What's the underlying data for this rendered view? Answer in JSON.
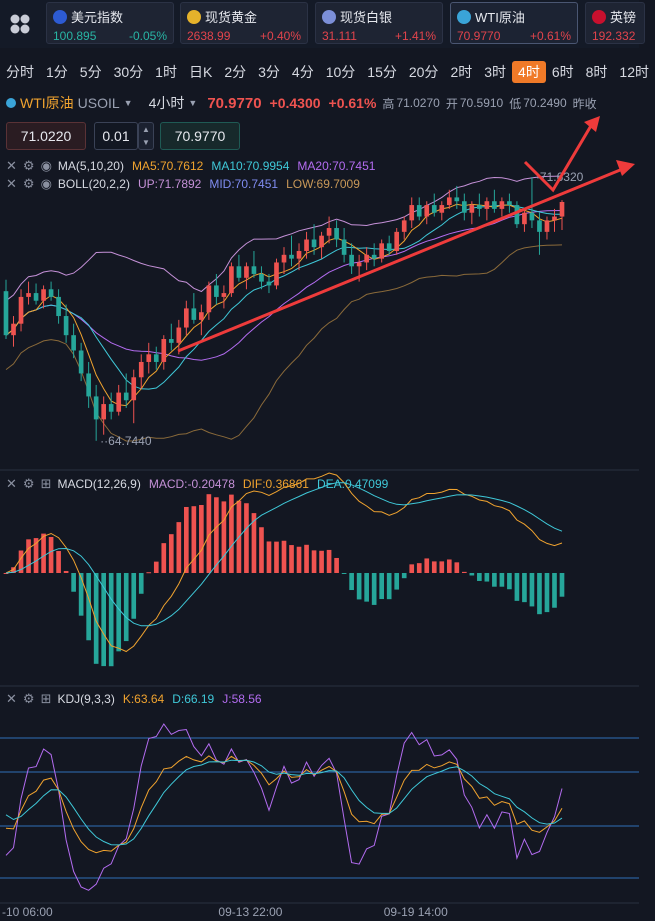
{
  "tickers": [
    {
      "name": "美元指数",
      "price": "100.895",
      "change": "-0.05%",
      "up": false,
      "flag_color": "#2d5bd3"
    },
    {
      "name": "现货黄金",
      "price": "2638.99",
      "change": "+0.40%",
      "up": true,
      "flag_color": "#e5b22b"
    },
    {
      "name": "现货白银",
      "price": "31.111",
      "change": "+1.41%",
      "up": true,
      "flag_color": "#7c8fd8"
    },
    {
      "name": "WTI原油",
      "price": "70.9770",
      "change": "+0.61%",
      "up": true,
      "flag_color": "#3aa4d8"
    },
    {
      "name": "英镑",
      "price": "192.332",
      "change": "",
      "up": true,
      "flag_color": "#c8102e"
    }
  ],
  "periods": [
    "分时",
    "1分",
    "5分",
    "30分",
    "1时",
    "日K",
    "2分",
    "3分",
    "4分",
    "10分",
    "15分",
    "20分",
    "2时",
    "3时",
    "4时",
    "6时",
    "8时",
    "12时"
  ],
  "active_period": "4时",
  "symbol": {
    "name": "WTI原油",
    "code": "USOIL",
    "timeframe": "4小时",
    "last": "70.9770",
    "change": "+0.4300",
    "change_pct": "+0.61%",
    "high_label": "高",
    "high": "71.0270",
    "open_label": "开",
    "open": "70.5910",
    "low_label": "低",
    "low": "70.2490",
    "prev_label": "昨收"
  },
  "order": {
    "sell_price": "71.0220",
    "lot": "0.01",
    "buy_price": "70.9770"
  },
  "indicators": {
    "ma": {
      "label": "MA(5,10,20)",
      "ma5": "MA5:70.7612",
      "ma10": "MA10:70.9954",
      "ma20": "MA20:70.7451"
    },
    "boll": {
      "label": "BOLL(20,2,2)",
      "up": "UP:71.7892",
      "mid": "MID:70.7451",
      "low": "LOW:69.7009"
    },
    "macd": {
      "label": "MACD(12,26,9)",
      "macd": "MACD:-0.20478",
      "dif": "DIF:0.36861",
      "dea": "DEA:0.47099"
    },
    "kdj": {
      "label": "KDJ(9,3,3)",
      "k": "K:63.64",
      "d": "D:66.19",
      "j": "J:58.56"
    }
  },
  "colors": {
    "up": "#ef5350",
    "down": "#26a69a",
    "ma5": "#f0a32f",
    "ma10": "#3fc8d8",
    "ma20": "#b36cf0",
    "boll": "#c591d8",
    "low_band": "#8a6a3a",
    "arrow": "#ee3b3b"
  },
  "chart_data": {
    "type": "candlestick",
    "price_range": [
      64.5,
      72.6
    ],
    "max_label": "71.6320",
    "min_label": "64.7440",
    "x_ticks": [
      "-10 06:00",
      "09-13 22:00",
      "09-19 14:00"
    ],
    "candles": [
      [
        68.65,
        68.95,
        67.4,
        67.5
      ],
      [
        67.5,
        68.0,
        67.2,
        67.8
      ],
      [
        67.8,
        68.7,
        67.6,
        68.5
      ],
      [
        68.5,
        68.9,
        68.3,
        68.6
      ],
      [
        68.6,
        68.85,
        68.3,
        68.4
      ],
      [
        68.4,
        68.8,
        68.2,
        68.7
      ],
      [
        68.7,
        68.9,
        68.4,
        68.5
      ],
      [
        68.5,
        68.7,
        67.8,
        68.0
      ],
      [
        68.0,
        68.3,
        67.3,
        67.5
      ],
      [
        67.5,
        67.8,
        66.9,
        67.1
      ],
      [
        67.1,
        67.3,
        66.3,
        66.5
      ],
      [
        66.5,
        66.8,
        65.6,
        65.9
      ],
      [
        65.9,
        66.2,
        64.74,
        65.3
      ],
      [
        65.3,
        65.9,
        64.9,
        65.7
      ],
      [
        65.7,
        66.0,
        65.3,
        65.5
      ],
      [
        65.5,
        66.2,
        65.4,
        66.0
      ],
      [
        66.0,
        66.5,
        65.6,
        65.8
      ],
      [
        65.8,
        66.6,
        65.2,
        66.4
      ],
      [
        66.4,
        67.0,
        66.1,
        66.8
      ],
      [
        66.8,
        67.3,
        66.5,
        67.0
      ],
      [
        67.0,
        67.2,
        66.6,
        66.8
      ],
      [
        66.8,
        67.5,
        66.6,
        67.4
      ],
      [
        67.4,
        67.8,
        67.1,
        67.3
      ],
      [
        67.3,
        67.9,
        67.0,
        67.7
      ],
      [
        67.7,
        68.4,
        67.5,
        68.2
      ],
      [
        68.2,
        68.6,
        67.8,
        67.9
      ],
      [
        67.9,
        68.3,
        67.5,
        68.1
      ],
      [
        68.1,
        68.9,
        67.9,
        68.8
      ],
      [
        68.8,
        69.1,
        68.3,
        68.5
      ],
      [
        68.5,
        68.8,
        68.2,
        68.6
      ],
      [
        68.6,
        69.4,
        68.5,
        69.3
      ],
      [
        69.3,
        69.6,
        68.9,
        69.0
      ],
      [
        69.0,
        69.4,
        68.7,
        69.3
      ],
      [
        69.3,
        69.7,
        69.0,
        69.1
      ],
      [
        69.1,
        69.3,
        68.7,
        68.9
      ],
      [
        68.9,
        69.1,
        68.6,
        68.8
      ],
      [
        68.8,
        69.5,
        68.7,
        69.4
      ],
      [
        69.4,
        69.8,
        69.1,
        69.6
      ],
      [
        69.6,
        70.1,
        69.3,
        69.5
      ],
      [
        69.5,
        69.9,
        69.2,
        69.7
      ],
      [
        69.7,
        70.2,
        69.5,
        70.0
      ],
      [
        70.0,
        70.4,
        69.6,
        69.8
      ],
      [
        69.8,
        70.2,
        69.5,
        70.1
      ],
      [
        70.1,
        70.6,
        69.9,
        70.3
      ],
      [
        70.3,
        70.5,
        69.8,
        70.0
      ],
      [
        70.0,
        70.3,
        69.4,
        69.6
      ],
      [
        69.6,
        69.9,
        69.1,
        69.3
      ],
      [
        69.3,
        69.6,
        68.9,
        69.4
      ],
      [
        69.4,
        69.8,
        69.2,
        69.6
      ],
      [
        69.6,
        69.9,
        69.3,
        69.5
      ],
      [
        69.5,
        70.0,
        69.4,
        69.9
      ],
      [
        69.9,
        70.1,
        69.6,
        69.7
      ],
      [
        69.7,
        70.3,
        69.6,
        70.2
      ],
      [
        70.2,
        70.6,
        70.0,
        70.5
      ],
      [
        70.5,
        71.1,
        70.3,
        70.9
      ],
      [
        70.9,
        71.1,
        70.5,
        70.6
      ],
      [
        70.6,
        71.0,
        70.4,
        70.9
      ],
      [
        70.9,
        71.2,
        70.6,
        70.7
      ],
      [
        70.7,
        71.0,
        70.5,
        70.9
      ],
      [
        70.9,
        71.3,
        70.8,
        71.1
      ],
      [
        71.1,
        71.4,
        70.8,
        71.0
      ],
      [
        71.0,
        71.2,
        70.5,
        70.7
      ],
      [
        70.7,
        71.0,
        70.4,
        70.9
      ],
      [
        70.9,
        71.2,
        70.6,
        70.8
      ],
      [
        70.8,
        71.1,
        70.5,
        71.0
      ],
      [
        71.0,
        71.3,
        70.7,
        70.8
      ],
      [
        70.8,
        71.1,
        70.6,
        71.0
      ],
      [
        71.0,
        71.2,
        70.7,
        70.9
      ],
      [
        70.9,
        71.0,
        70.3,
        70.4
      ],
      [
        70.4,
        70.8,
        70.2,
        70.7
      ],
      [
        70.7,
        71.63,
        70.3,
        70.5
      ],
      [
        70.5,
        70.7,
        69.6,
        70.2
      ],
      [
        70.2,
        70.6,
        70.0,
        70.5
      ],
      [
        70.5,
        70.8,
        70.2,
        70.6
      ],
      [
        70.6,
        71.03,
        70.25,
        70.98
      ]
    ]
  }
}
